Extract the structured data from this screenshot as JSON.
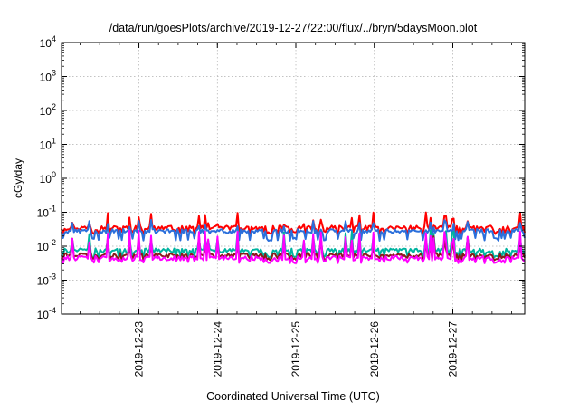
{
  "chart_data": {
    "type": "line",
    "title": "/data/run/goesPlots/archive/2019-12-27/22:00/flux/../bryn/5daysMoon.plot",
    "xlabel": "Coordinated Universal Time (UTC)",
    "ylabel": "cGy/day",
    "yscale": "log",
    "ylim": [
      0.0001,
      10000
    ],
    "y_ticks": [
      {
        "value": 0.0001,
        "base": "10",
        "exp": "-4"
      },
      {
        "value": 0.001,
        "base": "10",
        "exp": "-3"
      },
      {
        "value": 0.01,
        "base": "10",
        "exp": "-2"
      },
      {
        "value": 0.1,
        "base": "10",
        "exp": "-1"
      },
      {
        "value": 1,
        "base": "10",
        "exp": "0"
      },
      {
        "value": 10,
        "base": "10",
        "exp": "1"
      },
      {
        "value": 100,
        "base": "10",
        "exp": "2"
      },
      {
        "value": 1000,
        "base": "10",
        "exp": "3"
      },
      {
        "value": 10000,
        "base": "10",
        "exp": "4"
      }
    ],
    "x_range": [
      "2019-12-22T00:20",
      "2019-12-27T22:00"
    ],
    "x_tick_labels": [
      "2019-12-23",
      "2019-12-24",
      "2019-12-25",
      "2019-12-26",
      "2019-12-27"
    ],
    "grid": true,
    "series": [
      {
        "color": "#ff0000",
        "level": 0.035,
        "low": 0.025,
        "spike": 0.1
      },
      {
        "color": "#2a6fdb",
        "level": 0.028,
        "low": 0.016,
        "spike": 0.06
      },
      {
        "color": "#00b3a0",
        "level": 0.0075,
        "low": 0.005,
        "spike": 0.03
      },
      {
        "color": "#8b1a1a",
        "level": 0.0055,
        "low": 0.0042,
        "spike": 0.02
      },
      {
        "color": "#ff00ff",
        "level": 0.0045,
        "low": 0.0035,
        "spike": 0.03
      }
    ]
  }
}
